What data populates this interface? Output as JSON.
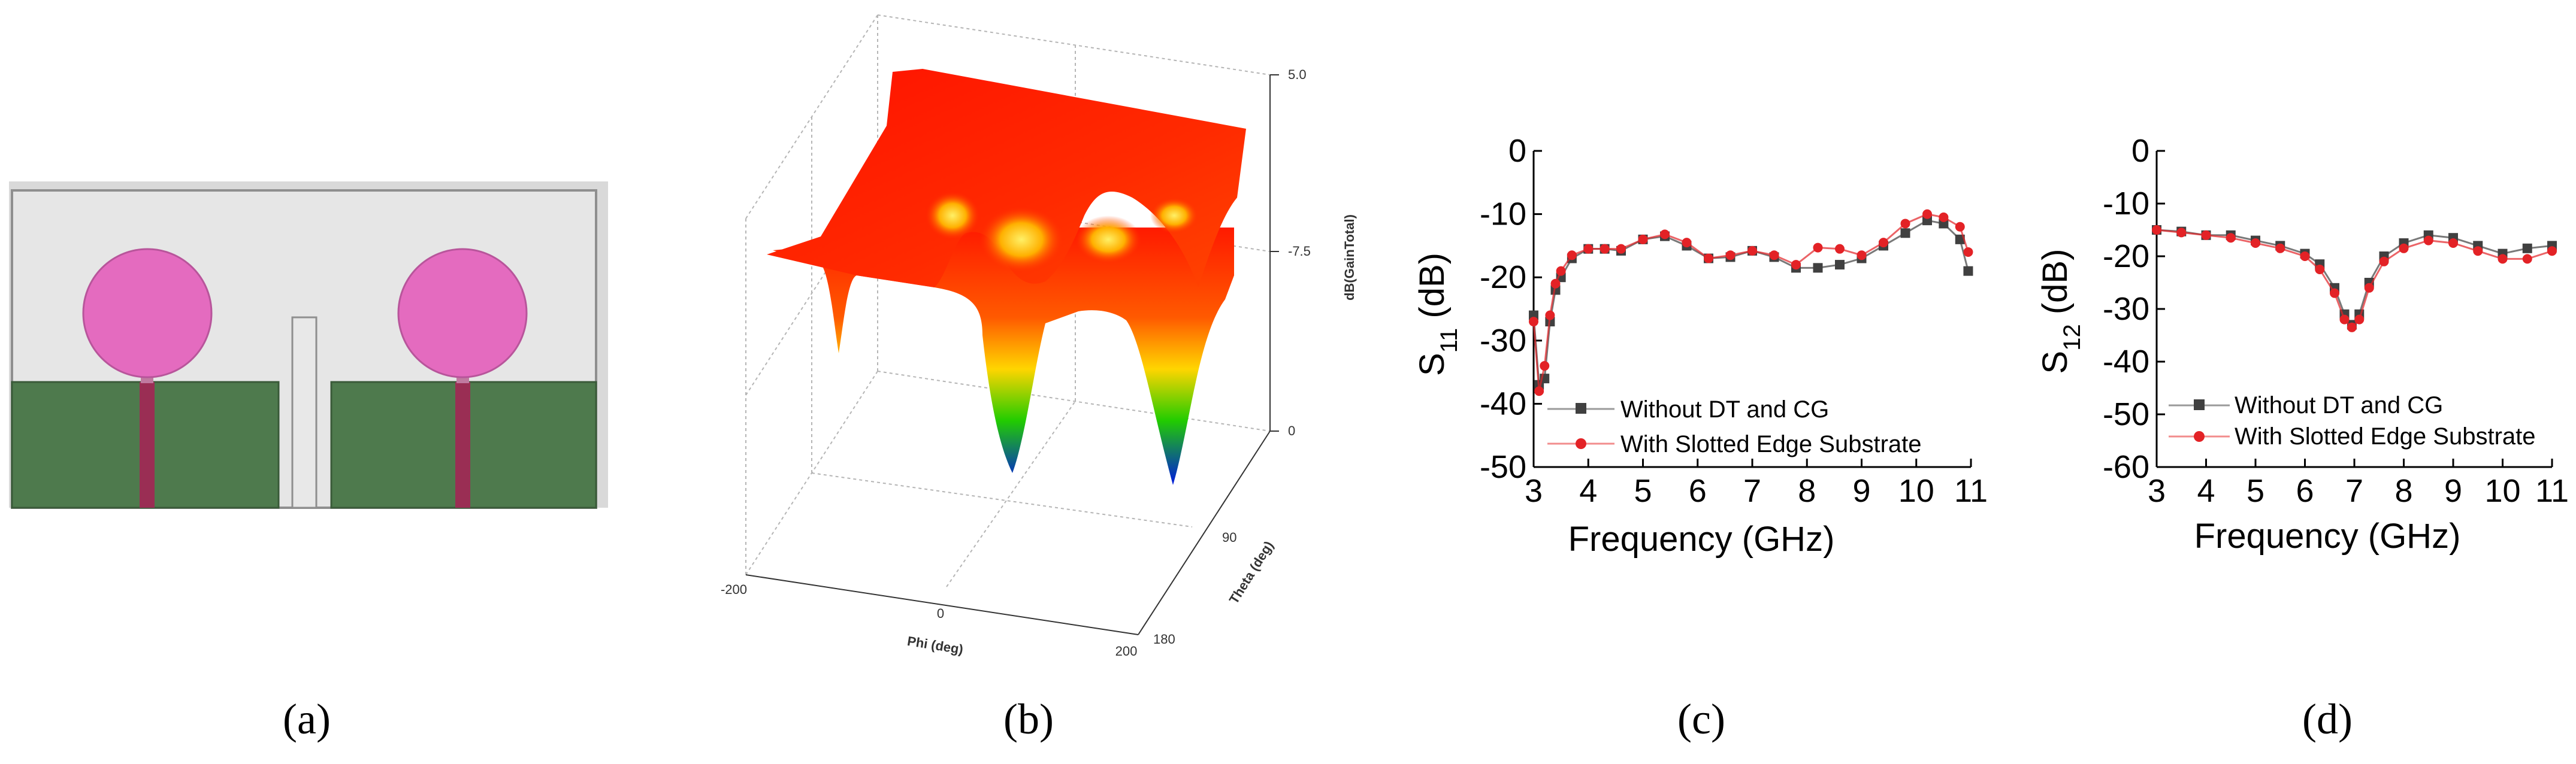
{
  "panels": {
    "a": {
      "label": "(a)"
    },
    "b": {
      "label": "(b)",
      "zaxis_title": "dB(GainTotal)",
      "zticks": [
        "5.0",
        "-7.5",
        "0"
      ],
      "phi_title": "Phi (deg)",
      "phi_ticks": [
        "-200",
        "0",
        "200"
      ],
      "theta_title": "Theta (deg)",
      "theta_ticks": [
        "90",
        "180"
      ],
      "colors": {
        "high": "#ff1a00",
        "mid": "#ffd500",
        "low2": "#22cc00",
        "low": "#0018e0"
      }
    },
    "c": {
      "label": "(c)"
    },
    "d": {
      "label": "(d)"
    }
  },
  "colors": {
    "series_dark": "#404040",
    "series_red": "#e32226",
    "substrate": "#e3e3e3",
    "ground": "#4e7a4d",
    "patch": "#e46bbf",
    "feed": "#9a2e54"
  },
  "chart_data": [
    {
      "id": "c",
      "type": "line",
      "xlabel": "Frequency (GHz)",
      "ylabel": "S11 (dB)",
      "ylabel_main": "S",
      "ylabel_sub": "11",
      "ylabel_unit": " (dB)",
      "xlim": [
        3,
        11
      ],
      "ylim": [
        -50,
        0
      ],
      "xticks": [
        3,
        4,
        5,
        6,
        7,
        8,
        9,
        10,
        11
      ],
      "yticks": [
        0,
        -10,
        -20,
        -30,
        -40,
        -50
      ],
      "legend": {
        "placement": "lower-right",
        "entries": [
          "Without DT and CG",
          "With Slotted Edge Substrate"
        ]
      },
      "series": [
        {
          "name": "Without DT and CG",
          "marker": "square",
          "x": [
            3.0,
            3.1,
            3.2,
            3.3,
            3.4,
            3.5,
            3.7,
            4.0,
            4.3,
            4.6,
            5.0,
            5.4,
            5.8,
            6.2,
            6.6,
            7.0,
            7.4,
            7.8,
            8.2,
            8.6,
            9.0,
            9.4,
            9.8,
            10.2,
            10.5,
            10.8,
            10.95
          ],
          "values": [
            -26,
            -37,
            -36,
            -27,
            -22,
            -20,
            -17,
            -15.5,
            -15.5,
            -15.8,
            -14,
            -13.5,
            -15,
            -17,
            -16.8,
            -15.8,
            -16.8,
            -18.5,
            -18.5,
            -18,
            -17,
            -15,
            -13,
            -11,
            -11.5,
            -14,
            -19
          ]
        },
        {
          "name": "With Slotted Edge Substrate",
          "marker": "circle",
          "x": [
            3.0,
            3.1,
            3.2,
            3.3,
            3.4,
            3.5,
            3.7,
            4.0,
            4.3,
            4.6,
            5.0,
            5.4,
            5.8,
            6.2,
            6.6,
            7.0,
            7.4,
            7.8,
            8.2,
            8.6,
            9.0,
            9.4,
            9.8,
            10.2,
            10.5,
            10.8,
            10.95
          ],
          "values": [
            -27,
            -38,
            -34,
            -26,
            -21,
            -19,
            -16.5,
            -15.5,
            -15.5,
            -15.5,
            -14,
            -13.2,
            -14.5,
            -17,
            -16.5,
            -15.8,
            -16.5,
            -18,
            -15.3,
            -15.5,
            -16.5,
            -14.5,
            -11.5,
            -10,
            -10.5,
            -12,
            -16
          ]
        }
      ]
    },
    {
      "id": "d",
      "type": "line",
      "xlabel": "Frequency (GHz)",
      "ylabel": "S12 (dB)",
      "ylabel_main": "S",
      "ylabel_sub": "12",
      "ylabel_unit": " (dB)",
      "xlim": [
        3,
        11
      ],
      "ylim": [
        -60,
        0
      ],
      "xticks": [
        3,
        4,
        5,
        6,
        7,
        8,
        9,
        10,
        11
      ],
      "yticks": [
        0,
        -10,
        -20,
        -30,
        -40,
        -50,
        -60
      ],
      "legend": {
        "placement": "lower-right",
        "entries": [
          "Without DT and CG",
          "With Slotted Edge Substrate"
        ]
      },
      "series": [
        {
          "name": "Without DT and CG",
          "marker": "square",
          "x": [
            3.0,
            3.5,
            4.0,
            4.5,
            5.0,
            5.5,
            6.0,
            6.3,
            6.6,
            6.8,
            6.95,
            7.1,
            7.3,
            7.6,
            8.0,
            8.5,
            9.0,
            9.5,
            10.0,
            10.5,
            11.0
          ],
          "values": [
            -15,
            -15.3,
            -16,
            -16,
            -17,
            -18,
            -19.5,
            -21.5,
            -26,
            -31,
            -33,
            -31,
            -25,
            -20,
            -17.5,
            -16,
            -16.5,
            -18,
            -19.5,
            -18.5,
            -18
          ]
        },
        {
          "name": "With Slotted Edge Substrate",
          "marker": "circle",
          "x": [
            3.0,
            3.5,
            4.0,
            4.5,
            5.0,
            5.5,
            6.0,
            6.3,
            6.6,
            6.8,
            6.95,
            7.1,
            7.3,
            7.6,
            8.0,
            8.5,
            9.0,
            9.5,
            10.0,
            10.5,
            11.0
          ],
          "values": [
            -15,
            -15.5,
            -16,
            -16.5,
            -17.5,
            -18.5,
            -20,
            -22.5,
            -27,
            -32,
            -33.5,
            -32,
            -26,
            -21,
            -18.5,
            -17,
            -17.5,
            -19,
            -20.5,
            -20.5,
            -19
          ]
        }
      ]
    }
  ]
}
